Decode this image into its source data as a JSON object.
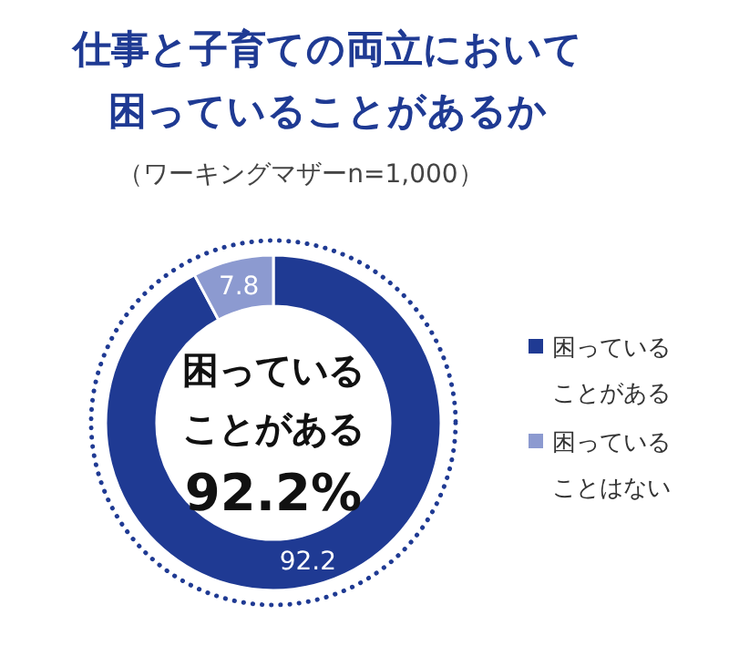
{
  "chart_data": {
    "type": "donut",
    "title": "仕事と子育ての両立において困っていることがあるか",
    "subtitle": "（ワーキングマザーn=1,000）",
    "categories": [
      "困っていることがある",
      "困っていることはない"
    ],
    "values": [
      92.2,
      7.8
    ],
    "colors": [
      "#1f3a93",
      "#8c9ad0"
    ],
    "data_labels": true,
    "legend": "right",
    "annotations": [
      "困っている",
      "ことがある",
      "92.2%"
    ]
  }
}
